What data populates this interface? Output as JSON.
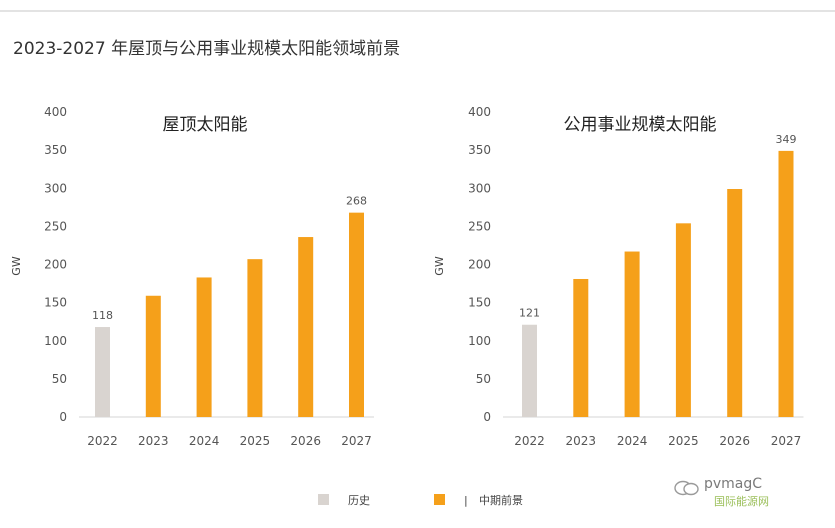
{
  "page_title": "2023-2027 年屋顶与公用事业规模太阳能领域前景",
  "legend": {
    "items": [
      {
        "label": "历史",
        "color": "#d9d4d0"
      },
      {
        "label": "中期前景",
        "color": "#f5a01a",
        "prefix_mark": "|"
      }
    ]
  },
  "watermark": {
    "text": "pvmagC",
    "subtext": "国际能源网"
  },
  "chart_data": [
    {
      "type": "bar",
      "title": "屋顶太阳能",
      "ylabel": "GW",
      "xlabel": "",
      "categories": [
        "2022",
        "2023",
        "2024",
        "2025",
        "2026",
        "2027"
      ],
      "values": [
        118,
        159,
        183,
        207,
        236,
        268
      ],
      "value_labels": [
        "118",
        "",
        "",
        "",
        "",
        "268"
      ],
      "bar_colors": [
        "#d9d4d0",
        "#f5a01a",
        "#f5a01a",
        "#f5a01a",
        "#f5a01a",
        "#f5a01a"
      ],
      "ylim": [
        0,
        400
      ],
      "yticks": [
        "0",
        "50",
        "100",
        "150",
        "200",
        "250",
        "300",
        "350",
        "400"
      ],
      "grid": false
    },
    {
      "type": "bar",
      "title": "公用事业规模太阳能",
      "ylabel": "GW",
      "xlabel": "",
      "categories": [
        "2022",
        "2023",
        "2024",
        "2025",
        "2026",
        "2027"
      ],
      "values": [
        121,
        181,
        217,
        254,
        299,
        349
      ],
      "value_labels": [
        "121",
        "",
        "",
        "",
        "",
        "349"
      ],
      "bar_colors": [
        "#d9d4d0",
        "#f5a01a",
        "#f5a01a",
        "#f5a01a",
        "#f5a01a",
        "#f5a01a"
      ],
      "ylim": [
        0,
        400
      ],
      "yticks": [
        "0",
        "50",
        "100",
        "150",
        "200",
        "250",
        "300",
        "350",
        "400"
      ],
      "grid": false
    }
  ]
}
